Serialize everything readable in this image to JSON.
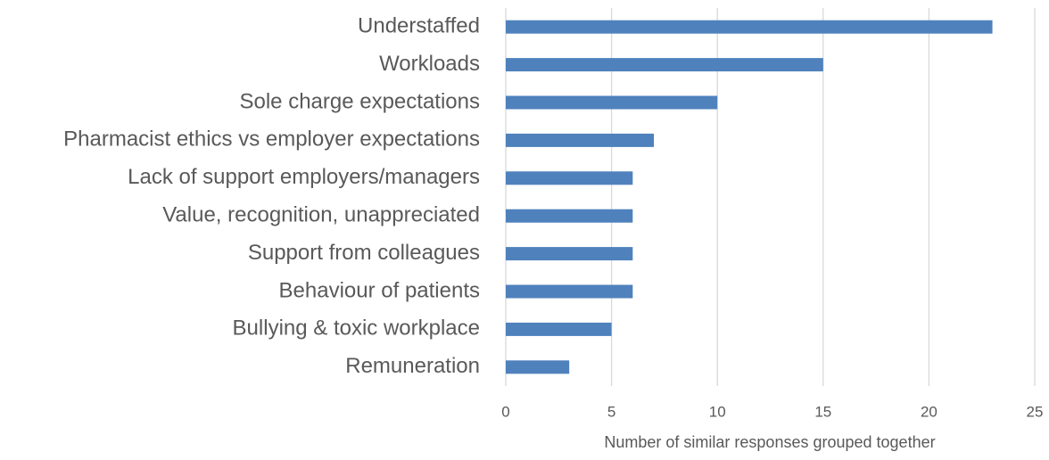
{
  "chart_data": {
    "type": "bar",
    "orientation": "horizontal",
    "x_label": "Number of similar responses grouped together",
    "categories": [
      "Understaffed",
      "Workloads",
      "Sole charge expectations",
      "Pharmacist ethics vs employer expectations",
      "Lack of support employers/managers",
      "Value, recognition, unappreciated",
      "Support from colleagues",
      "Behaviour of patients",
      "Bullying & toxic workplace",
      "Remuneration"
    ],
    "values": [
      23,
      15,
      10,
      7,
      6,
      6,
      6,
      6,
      5,
      3
    ],
    "color": "#4f81bd",
    "xlim": [
      0,
      25
    ],
    "xticks": [
      0,
      5,
      10,
      15,
      20,
      25
    ],
    "grid": true
  }
}
